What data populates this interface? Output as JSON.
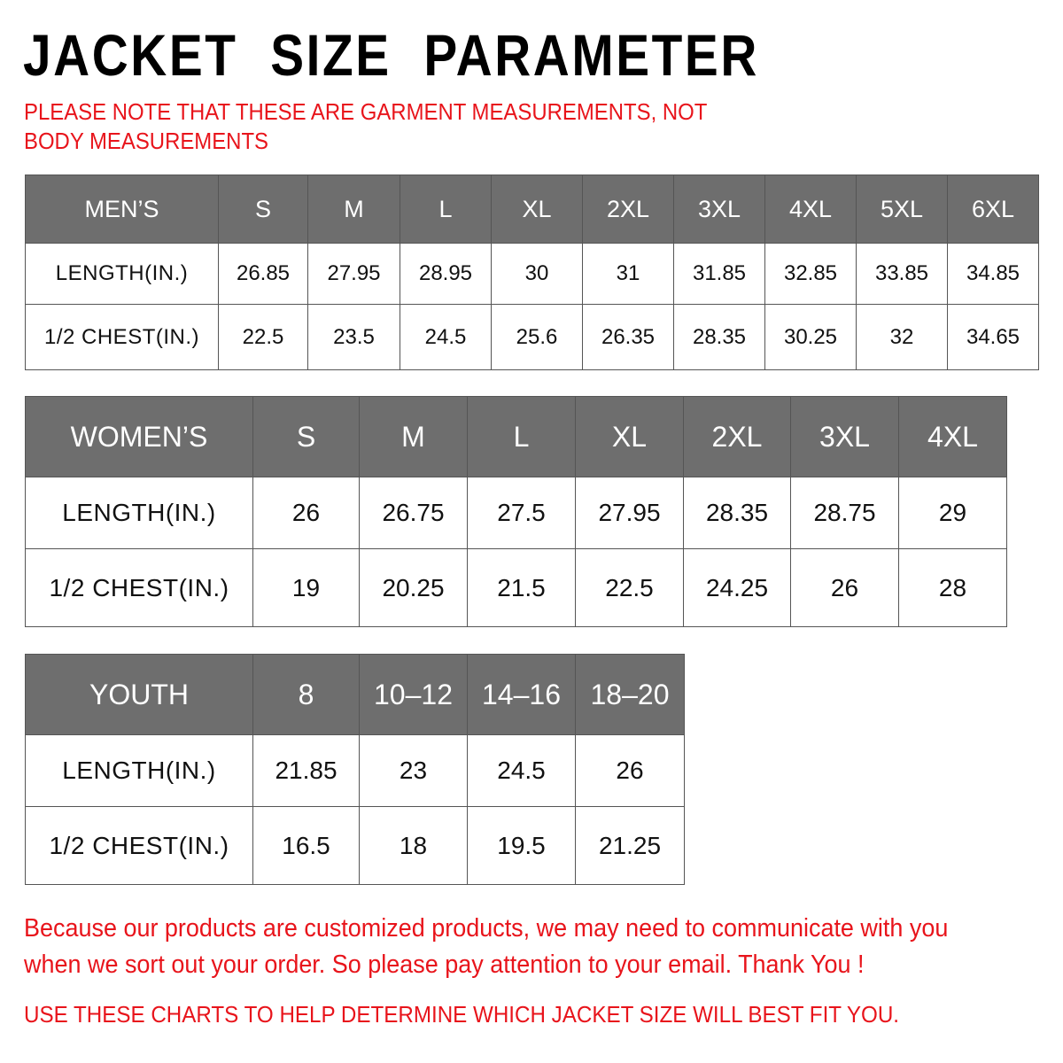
{
  "title": "JACKET  SIZE  PARAMETER",
  "note": "PLEASE NOTE THAT THESE ARE GARMENT MEASUREMENTS, NOT BODY MEASUREMENTS",
  "colors": {
    "header_bg": "#6e6e6e",
    "accent_red": "#e8141b"
  },
  "tables": {
    "men": {
      "header": [
        "MEN’S",
        "S",
        "M",
        "L",
        "XL",
        "2XL",
        "3XL",
        "4XL",
        "5XL",
        "6XL"
      ],
      "rows": [
        [
          "LENGTH(IN.)",
          "26.85",
          "27.95",
          "28.95",
          "30",
          "31",
          "31.85",
          "32.85",
          "33.85",
          "34.85"
        ],
        [
          "1/2 CHEST(IN.)",
          "22.5",
          "23.5",
          "24.5",
          "25.6",
          "26.35",
          "28.35",
          "30.25",
          "32",
          "34.65"
        ]
      ]
    },
    "women": {
      "header": [
        "WOMEN’S",
        "S",
        "M",
        "L",
        "XL",
        "2XL",
        "3XL",
        "4XL"
      ],
      "rows": [
        [
          "LENGTH(IN.)",
          "26",
          "26.75",
          "27.5",
          "27.95",
          "28.35",
          "28.75",
          "29"
        ],
        [
          "1/2 CHEST(IN.)",
          "19",
          "20.25",
          "21.5",
          "22.5",
          "24.25",
          "26",
          "28"
        ]
      ]
    },
    "youth": {
      "header": [
        "YOUTH",
        "8",
        "10–12",
        "14–16",
        "18–20"
      ],
      "rows": [
        [
          "LENGTH(IN.)",
          "21.85",
          "23",
          "24.5",
          "26"
        ],
        [
          "1/2 CHEST(IN.)",
          "16.5",
          "18",
          "19.5",
          "21.25"
        ]
      ]
    }
  },
  "footer": {
    "message": "Because our products are customized products, we may need to communicate with you when we sort out your order. So please pay attention to your email. Thank You !",
    "instruction": "USE THESE CHARTS TO HELP DETERMINE WHICH JACKET SIZE WILL BEST FIT YOU."
  }
}
